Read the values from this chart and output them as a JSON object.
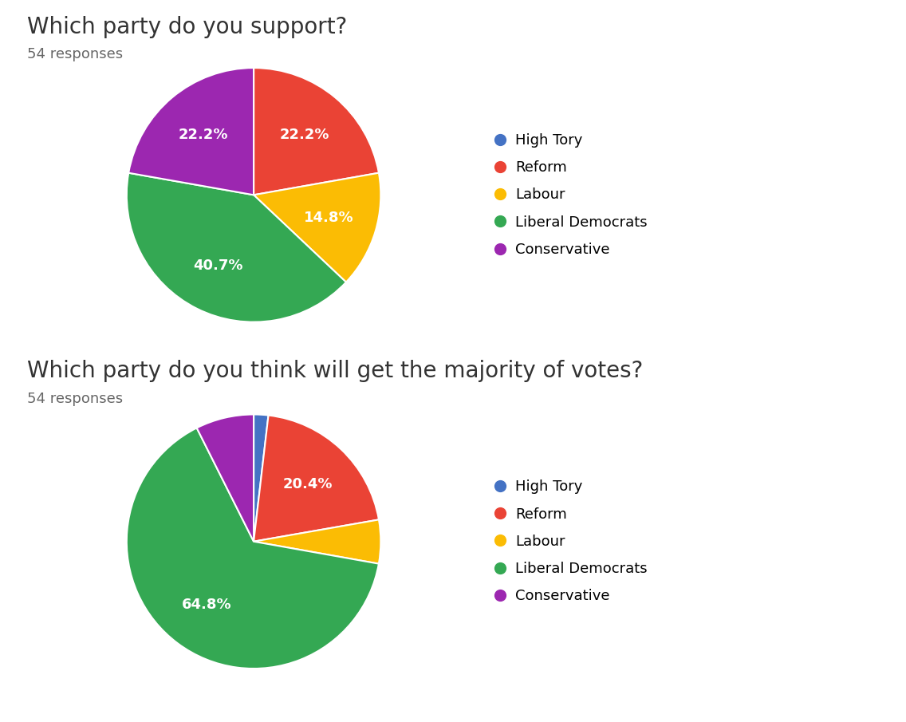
{
  "chart1": {
    "title": "Which party do you support?",
    "responses": "54 responses",
    "labels": [
      "High Tory",
      "Reform",
      "Labour",
      "Liberal Democrats",
      "Conservative"
    ],
    "values": [
      0.0,
      22.2,
      14.8,
      40.7,
      22.2
    ],
    "colors": [
      "#4472C4",
      "#EA4335",
      "#FBBC04",
      "#34A853",
      "#9C27B0"
    ],
    "autopct_labels": [
      "",
      "22.2%",
      "14.8%",
      "40.7%",
      "22.2%"
    ]
  },
  "chart2": {
    "title": "Which party do you think will get the majority of votes?",
    "responses": "54 responses",
    "labels": [
      "High Tory",
      "Reform",
      "Labour",
      "Liberal Democrats",
      "Conservative"
    ],
    "values": [
      1.85,
      20.4,
      5.55,
      64.8,
      7.4
    ],
    "colors": [
      "#4472C4",
      "#EA4335",
      "#FBBC04",
      "#34A853",
      "#9C27B0"
    ],
    "autopct_labels": [
      "",
      "20.4%",
      "",
      "64.8%",
      ""
    ]
  },
  "legend_labels": [
    "High Tory",
    "Reform",
    "Labour",
    "Liberal Democrats",
    "Conservative"
  ],
  "legend_colors": [
    "#4472C4",
    "#EA4335",
    "#FBBC04",
    "#34A853",
    "#9C27B0"
  ],
  "bg_color": "#FFFFFF",
  "title_fontsize": 20,
  "response_fontsize": 13,
  "label_fontsize": 13,
  "legend_fontsize": 13,
  "divider_color": "#E0E0E8"
}
